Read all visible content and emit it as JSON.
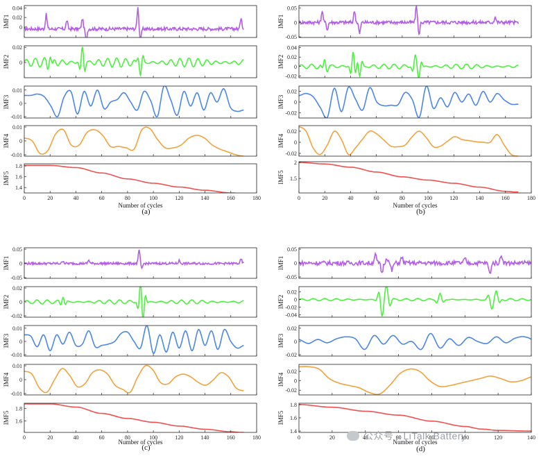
{
  "watermark": "公众号 · LiTalk Battery",
  "chart_data": [
    {
      "type": "line",
      "caption": "(a)",
      "xlabel": "Number of cycles",
      "x_range": [
        0,
        170
      ],
      "xlim": [
        0,
        180
      ],
      "xticks": [
        "0",
        "20",
        "40",
        "60",
        "80",
        "100",
        "120",
        "140",
        "160",
        "180"
      ],
      "panels": [
        {
          "name": "IMF1",
          "color": "#b25ce6",
          "ylim": [
            -0.022,
            0.045
          ],
          "yticks": [
            "0.04",
            "0.02",
            "0"
          ],
          "noise": {
            "amp": 0.0035,
            "base": -0.004,
            "spikes": [
              [
                17,
                0.03
              ],
              [
                33,
                0.018
              ],
              [
                45,
                0.022
              ],
              [
                48,
                -0.025
              ],
              [
                88,
                0.045
              ],
              [
                90,
                -0.025
              ],
              [
                168,
                0.025
              ]
            ]
          }
        },
        {
          "name": "IMF2",
          "color": "#4df03f",
          "ylim": [
            -0.02,
            0.022
          ],
          "yticks": [
            "0.02",
            "0"
          ],
          "osc": {
            "amp": 0.012,
            "base": 0,
            "period": 7,
            "bursts": [
              [
                45,
                0.02
              ],
              [
                90,
                -0.015
              ],
              [
                20,
                0.01
              ]
            ]
          }
        },
        {
          "name": "IMF3",
          "color": "#4a86e8",
          "ylim": [
            -0.011,
            0.013
          ],
          "yticks": [
            "0.01",
            "0",
            "-0.01"
          ],
          "y": [
            0.006,
            0.006,
            0.007,
            0.005,
            -0.002,
            -0.01,
            0.005,
            0.009,
            -0.008,
            0.009,
            -0.002,
            0.01,
            -0.004,
            0.001,
            0.003,
            0.008,
            0.001,
            -0.005,
            0.009,
            0.002,
            -0.01,
            0.013,
            0.003,
            -0.009,
            0.009,
            -0.002,
            0.008,
            -0.005,
            0.008,
            0.001,
            0.011,
            -0.003,
            -0.006,
            -0.005
          ]
        },
        {
          "name": "IMF4",
          "color": "#f2a23c",
          "ylim": [
            -0.011,
            0.011
          ],
          "yticks": [
            "0.01",
            "0",
            "-0.01"
          ],
          "y": [
            0.002,
            0.0,
            -0.009,
            -0.007,
            0.005,
            0.008,
            -0.003,
            -0.003,
            0.006,
            0.008,
            0.004,
            -0.004,
            -0.004,
            -0.005,
            -0.006,
            0.008,
            0.009,
            0.001,
            -0.005,
            -0.005,
            -0.003,
            0.002,
            0.004,
            0.002,
            -0.003,
            -0.006,
            -0.008,
            -0.01,
            -0.011
          ]
        },
        {
          "name": "IMF5",
          "color": "#f05050",
          "ylim": [
            1.3,
            1.84
          ],
          "yticks": [
            "1.8",
            "1.6",
            "1.4"
          ],
          "trend": [
            [
              0,
              1.81
            ],
            [
              20,
              1.81
            ],
            [
              40,
              1.77
            ],
            [
              60,
              1.67
            ],
            [
              80,
              1.56
            ],
            [
              100,
              1.48
            ],
            [
              120,
              1.41
            ],
            [
              140,
              1.35
            ],
            [
              160,
              1.3
            ],
            [
              168,
              1.29
            ]
          ]
        }
      ]
    },
    {
      "type": "line",
      "caption": "(b)",
      "xlabel": "Number of cycles",
      "x_range": [
        0,
        170
      ],
      "xlim": [
        0,
        180
      ],
      "xticks": [
        "0",
        "20",
        "40",
        "60",
        "80",
        "100",
        "120",
        "140",
        "160",
        "180"
      ],
      "panels": [
        {
          "name": "IMF1",
          "color": "#b25ce6",
          "ylim": [
            -0.052,
            0.058
          ],
          "yticks": [
            "0.05",
            "0",
            "-0.05"
          ],
          "noise": {
            "amp": 0.006,
            "base": 0,
            "spikes": [
              [
                18,
                0.04
              ],
              [
                22,
                -0.025
              ],
              [
                43,
                0.04
              ],
              [
                47,
                -0.04
              ],
              [
                91,
                0.058
              ],
              [
                93,
                -0.045
              ],
              [
                152,
                0.02
              ]
            ]
          }
        },
        {
          "name": "IMF2",
          "color": "#4df03f",
          "ylim": [
            -0.024,
            0.044
          ],
          "yticks": [
            "0.04",
            "0.02",
            "0",
            "-0.02"
          ],
          "osc": {
            "amp": 0.01,
            "base": 0,
            "period": 8,
            "bursts": [
              [
                42,
                0.03
              ],
              [
                47,
                -0.02
              ],
              [
                90,
                0.02
              ],
              [
                93,
                -0.02
              ],
              [
                20,
                0.015
              ]
            ]
          }
        },
        {
          "name": "IMF3",
          "color": "#4a86e8",
          "ylim": [
            -0.03,
            0.03
          ],
          "yticks": [
            "0.02",
            "0",
            "-0.02"
          ],
          "y": [
            0.012,
            0.016,
            0.01,
            -0.01,
            -0.029,
            0.026,
            -0.018,
            0.028,
            0.005,
            -0.015,
            0.027,
            0.0,
            -0.007,
            -0.006,
            -0.005,
            0.018,
            0.005,
            -0.029,
            0.03,
            -0.012,
            0.008,
            -0.009,
            0.018,
            0.0,
            0.015,
            -0.006,
            0.02,
            0.0,
            0.016,
            0.004,
            -0.004,
            -0.004
          ]
        },
        {
          "name": "IMF4",
          "color": "#f2a23c",
          "ylim": [
            -0.025,
            0.03
          ],
          "yticks": [
            "0.02",
            "0",
            "-0.02"
          ],
          "y": [
            0.028,
            0.02,
            -0.01,
            -0.022,
            -0.005,
            0.02,
            0.005,
            -0.022,
            -0.01,
            0.006,
            0.02,
            0.015,
            0.004,
            -0.007,
            -0.008,
            -0.005,
            0.01,
            0.02,
            0.008,
            -0.008,
            -0.007,
            0.002,
            0.01,
            0.005,
            0.003,
            0.001,
            0.0,
            0.0,
            0.014,
            -0.005,
            -0.022,
            -0.025
          ]
        },
        {
          "name": "IMF5",
          "color": "#f05050",
          "ylim": [
            1.05,
            2.02
          ],
          "yticks": [
            "2",
            "1.5"
          ],
          "trend": [
            [
              0,
              2.0
            ],
            [
              20,
              1.95
            ],
            [
              40,
              1.85
            ],
            [
              60,
              1.7
            ],
            [
              80,
              1.55
            ],
            [
              100,
              1.45
            ],
            [
              120,
              1.35
            ],
            [
              140,
              1.23
            ],
            [
              160,
              1.1
            ],
            [
              168,
              1.08
            ]
          ]
        }
      ]
    },
    {
      "type": "line",
      "caption": "(c)",
      "xlabel": "Number of cycles",
      "x_range": [
        0,
        170
      ],
      "xlim": [
        0,
        180
      ],
      "xticks": [
        "0",
        "20",
        "40",
        "60",
        "80",
        "100",
        "120",
        "140",
        "160",
        "180"
      ],
      "panels": [
        {
          "name": "IMF1",
          "color": "#b25ce6",
          "ylim": [
            -0.052,
            0.055
          ],
          "yticks": [
            "0.05",
            "0",
            "-0.05"
          ],
          "noise": {
            "amp": 0.004,
            "base": 0,
            "spikes": [
              [
                30,
                0.01
              ],
              [
                50,
                0.012
              ],
              [
                89,
                0.048
              ],
              [
                91,
                -0.02
              ],
              [
                120,
                0.01
              ],
              [
                168,
                0.015
              ]
            ]
          }
        },
        {
          "name": "IMF2",
          "color": "#4df03f",
          "ylim": [
            -0.022,
            0.022
          ],
          "yticks": [
            "0.02",
            "0",
            "-0.02"
          ],
          "osc": {
            "amp": 0.006,
            "base": 0,
            "period": 8,
            "bursts": [
              [
                90,
                0.018
              ],
              [
                92,
                -0.018
              ],
              [
                30,
                0.008
              ]
            ]
          }
        },
        {
          "name": "IMF3",
          "color": "#4a86e8",
          "ylim": [
            -0.011,
            0.012
          ],
          "yticks": [
            "0.01",
            "0",
            "-0.01"
          ],
          "y": [
            0.005,
            0.004,
            -0.004,
            0.005,
            -0.007,
            0.005,
            -0.002,
            0.007,
            -0.003,
            -0.002,
            0.008,
            -0.004,
            -0.003,
            -0.002,
            0.0,
            0.006,
            0.007,
            0.0,
            -0.005,
            0.012,
            -0.009,
            0.005,
            -0.008,
            0.007,
            -0.005,
            0.008,
            -0.007,
            0.009,
            -0.003,
            0.008,
            -0.006,
            0.009,
            0.0,
            -0.005,
            -0.003
          ]
        },
        {
          "name": "IMF4",
          "color": "#f2a23c",
          "ylim": [
            -0.011,
            0.011
          ],
          "yticks": [
            "0.01",
            "0",
            "-0.01"
          ],
          "y": [
            0.006,
            0.004,
            -0.006,
            -0.009,
            0.0,
            0.008,
            0.003,
            -0.005,
            -0.003,
            0.005,
            0.007,
            0.004,
            -0.004,
            -0.007,
            -0.009,
            0.002,
            0.01,
            0.007,
            -0.002,
            -0.003,
            0.002,
            0.004,
            0.002,
            -0.002,
            -0.004,
            0.0,
            0.005,
            0.002,
            -0.006,
            -0.008
          ]
        },
        {
          "name": "IMF5",
          "color": "#f05050",
          "ylim": [
            1.42,
            1.88
          ],
          "yticks": [
            "1.8",
            "1.6"
          ],
          "trend": [
            [
              0,
              1.87
            ],
            [
              20,
              1.87
            ],
            [
              40,
              1.82
            ],
            [
              60,
              1.72
            ],
            [
              80,
              1.64
            ],
            [
              100,
              1.58
            ],
            [
              120,
              1.52
            ],
            [
              140,
              1.47
            ],
            [
              160,
              1.43
            ],
            [
              168,
              1.42
            ]
          ]
        }
      ]
    },
    {
      "type": "line",
      "caption": "(d)",
      "xlabel": "Number of cycles",
      "x_range": [
        0,
        170
      ],
      "xlim": [
        0,
        140
      ],
      "xticks": [
        "0",
        "20",
        "40",
        "60",
        "80",
        "100",
        "120",
        "140"
      ],
      "panels": [
        {
          "name": "IMF1",
          "color": "#b25ce6",
          "ylim": [
            -0.055,
            0.055
          ],
          "yticks": [
            "0.05",
            "0",
            "-0.05"
          ],
          "noise": {
            "amp": 0.008,
            "base": 0,
            "spikes": [
              [
                46,
                0.03
              ],
              [
                50,
                -0.035
              ],
              [
                53,
                0.02
              ],
              [
                56,
                -0.028
              ],
              [
                62,
                0.02
              ],
              [
                100,
                0.015
              ],
              [
                115,
                -0.04
              ],
              [
                122,
                0.03
              ]
            ]
          }
        },
        {
          "name": "IMF2",
          "color": "#4df03f",
          "ylim": [
            -0.046,
            0.034
          ],
          "yticks": [
            "0.02",
            "0",
            "-0.02",
            "-0.04"
          ],
          "osc": {
            "amp": 0.006,
            "base": 0,
            "period": 7,
            "bursts": [
              [
                50,
                -0.04
              ],
              [
                53,
                0.03
              ],
              [
                85,
                0.015
              ],
              [
                116,
                -0.02
              ],
              [
                119,
                0.02
              ]
            ]
          }
        },
        {
          "name": "IMF3",
          "color": "#4a86e8",
          "ylim": [
            -0.022,
            0.024
          ],
          "yticks": [
            "0.02",
            "0",
            "-0.02"
          ],
          "y": [
            0.003,
            -0.003,
            0.003,
            -0.002,
            0.004,
            0.007,
            0.004,
            -0.012,
            0.009,
            -0.004,
            0.009,
            -0.004,
            0.0,
            -0.012,
            0.012,
            -0.01,
            0.004,
            -0.006,
            0.006,
            0.0,
            -0.003,
            0.007,
            -0.002,
            0.005,
            0.007,
            0.0,
            -0.02,
            0.02,
            0.0,
            -0.01,
            -0.012
          ]
        },
        {
          "name": "IMF4",
          "color": "#f2a23c",
          "ylim": [
            -0.03,
            0.035
          ],
          "yticks": [
            "0.02",
            "0",
            "-0.02"
          ],
          "y": [
            0.03,
            0.03,
            0.025,
            0.005,
            -0.005,
            -0.01,
            -0.015,
            -0.025,
            -0.028,
            -0.01,
            0.015,
            0.025,
            0.02,
            0.0,
            -0.012,
            -0.01,
            -0.005,
            0.0,
            0.005,
            0.01,
            0.005,
            -0.002,
            0.0,
            0.008,
            0.012,
            0.005,
            -0.005,
            -0.008,
            -0.01
          ]
        },
        {
          "name": "IMF5",
          "color": "#f05050",
          "ylim": [
            1.38,
            1.82
          ],
          "yticks": [
            "1.8",
            "1.6",
            "1.4"
          ],
          "trend": [
            [
              0,
              1.8
            ],
            [
              20,
              1.76
            ],
            [
              40,
              1.7
            ],
            [
              60,
              1.64
            ],
            [
              80,
              1.55
            ],
            [
              100,
              1.47
            ],
            [
              110,
              1.43
            ],
            [
              120,
              1.41
            ],
            [
              140,
              1.4
            ],
            [
              160,
              1.4
            ],
            [
              168,
              1.4
            ]
          ]
        }
      ]
    }
  ]
}
